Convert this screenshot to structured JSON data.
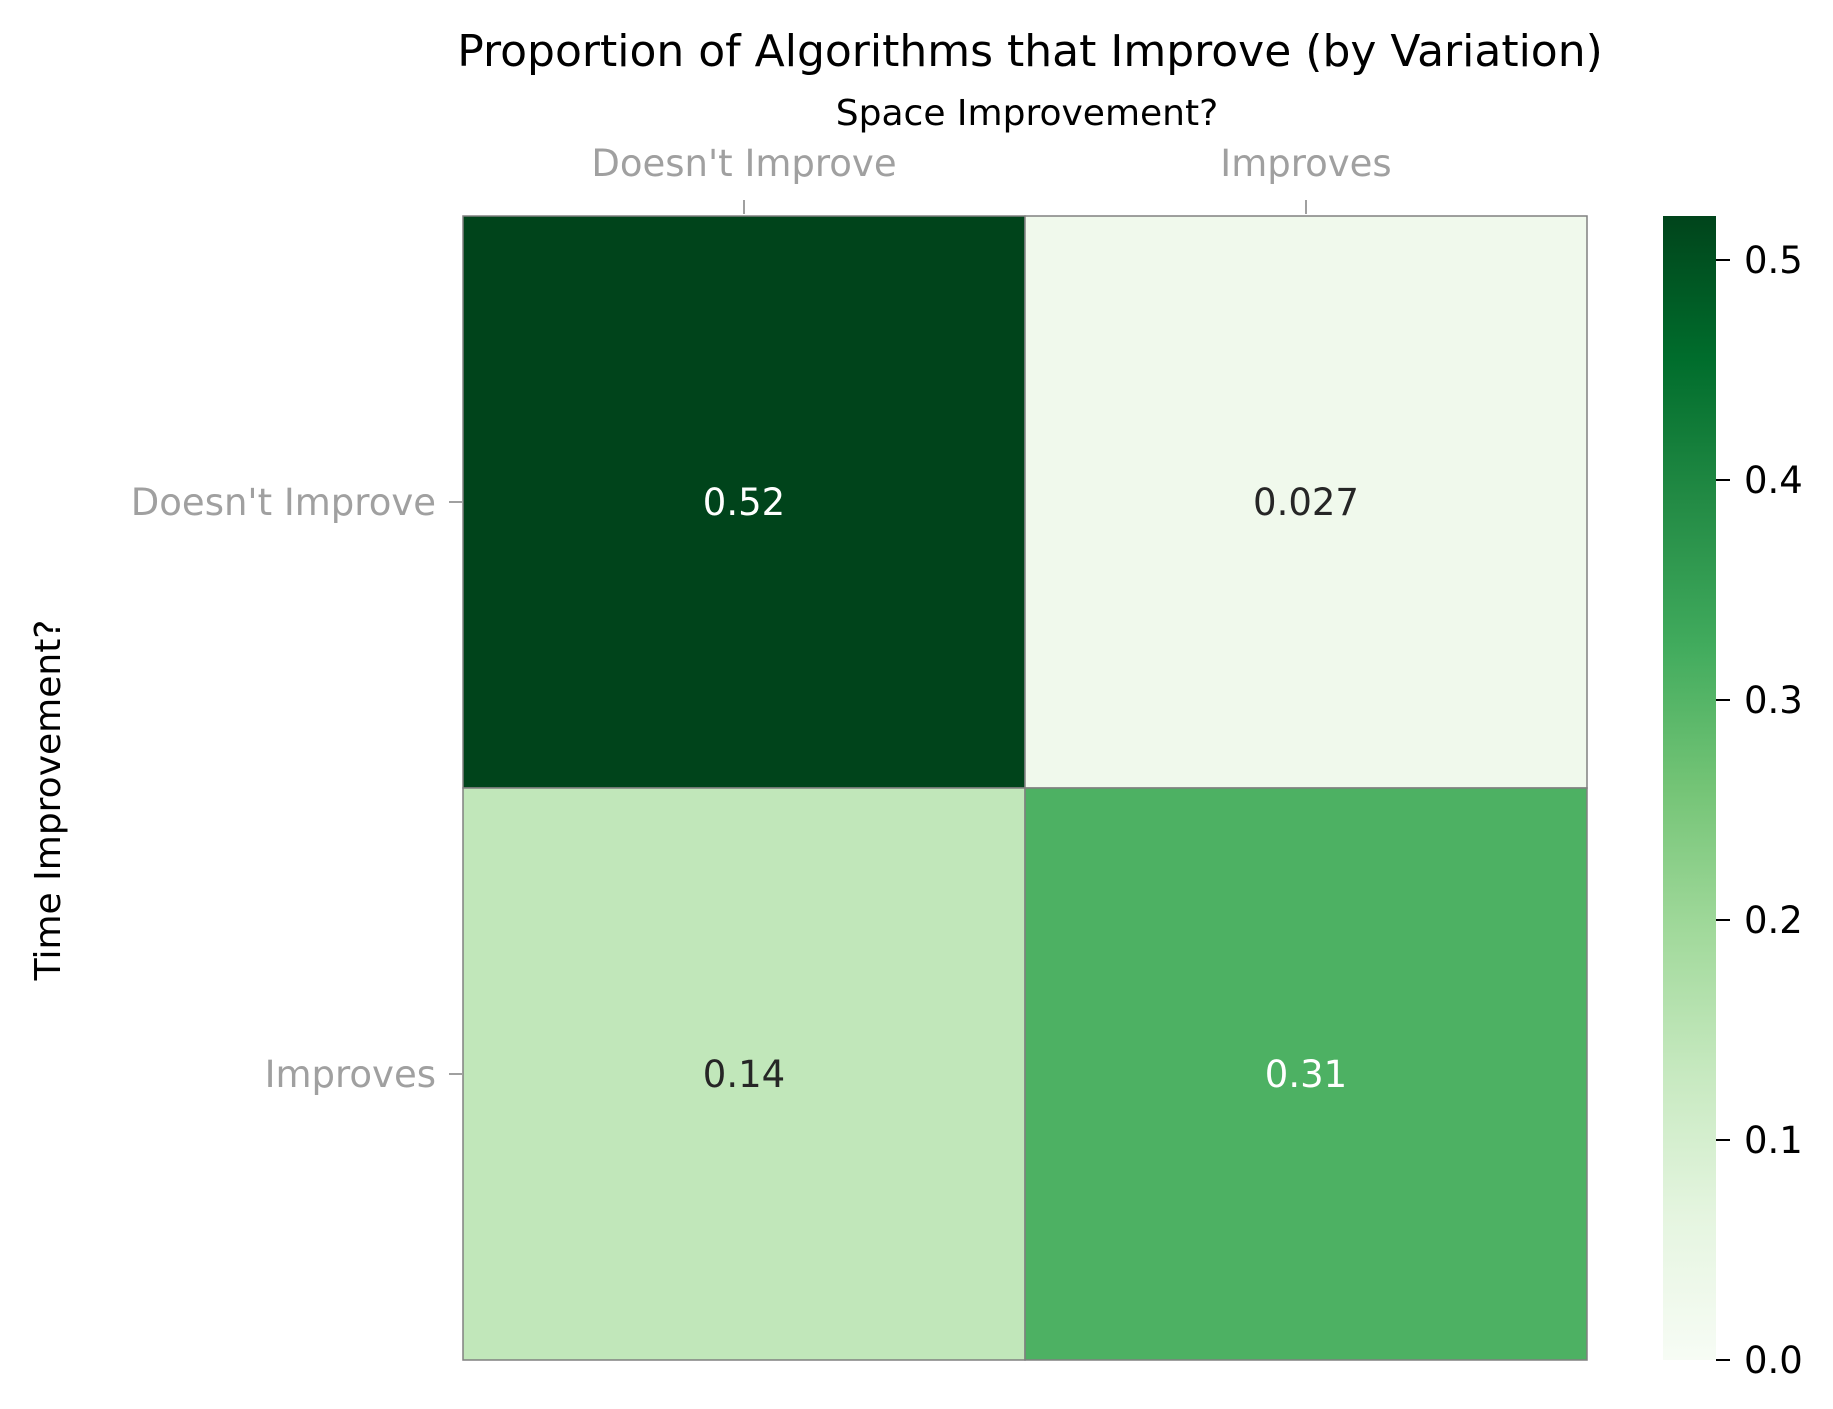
{
  "chart_data": {
    "type": "heatmap",
    "title": "Proportion of Algorithms that Improve (by Variation)",
    "xlabel": "Space Improvement?",
    "ylabel": "Time Improvement?",
    "x_categories": [
      "Doesn't Improve",
      "Improves"
    ],
    "y_categories": [
      "Doesn't Improve",
      "Improves"
    ],
    "values": [
      [
        0.52,
        0.027
      ],
      [
        0.14,
        0.31
      ]
    ],
    "value_labels": [
      [
        "0.52",
        "0.027"
      ],
      [
        "0.14",
        "0.31"
      ]
    ],
    "x_axis_position": "top",
    "colormap": "Greens",
    "colorbar": {
      "range": [
        0,
        0.52
      ],
      "ticks": [
        0.0,
        0.1,
        0.2,
        0.3,
        0.4,
        0.5
      ],
      "tick_labels": [
        "0.0",
        "0.1",
        "0.2",
        "0.3",
        "0.4",
        "0.5"
      ]
    },
    "grid": false,
    "colors": {
      "tick_label": "#a0a0a0",
      "annotation_dark": "#262626",
      "annotation_light": "#ffffff",
      "cell_border": "#808080"
    }
  }
}
